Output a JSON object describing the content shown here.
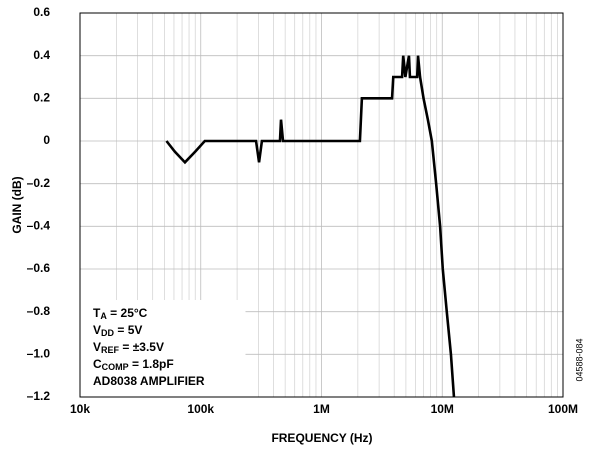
{
  "chart_data": {
    "type": "line",
    "x_label": "FREQUENCY (Hz)",
    "y_label": "GAIN (dB)",
    "side_note": "04588-084",
    "xscale": "log",
    "grid": true,
    "xlim": [
      10000,
      100000000
    ],
    "ylim": [
      -1.2,
      0.6
    ],
    "xticks": [
      {
        "value": 10000,
        "label": "10k"
      },
      {
        "value": 100000,
        "label": "100k"
      },
      {
        "value": 1000000,
        "label": "1M"
      },
      {
        "value": 10000000,
        "label": "10M"
      },
      {
        "value": 100000000,
        "label": "100M"
      }
    ],
    "yticks": [
      {
        "value": -1.2,
        "label": "–1.2"
      },
      {
        "value": -1.0,
        "label": "–1.0"
      },
      {
        "value": -0.8,
        "label": "–0.8"
      },
      {
        "value": -0.6,
        "label": "–0.6"
      },
      {
        "value": -0.4,
        "label": "–0.4"
      },
      {
        "value": -0.2,
        "label": "–0.2"
      },
      0,
      0.2,
      0.4,
      0.6
    ],
    "annotations": [
      {
        "text": "T",
        "sub": "A",
        "rest": " = 25°C"
      },
      {
        "text": "V",
        "sub": "DD",
        "rest": " = 5V"
      },
      {
        "text": "V",
        "sub": "REF",
        "rest": " = ±3.5V"
      },
      {
        "text": "C",
        "sub": "COMP",
        "rest": " = 1.8pF"
      },
      {
        "text": "AD8038 AMPLIFIER"
      }
    ],
    "x": [
      52000,
      61000,
      74000,
      90000,
      108000,
      287000,
      304000,
      321000,
      453000,
      462000,
      480000,
      2080000,
      2160000,
      3840000,
      3930000,
      4650000,
      4750000,
      4950000,
      5300000,
      5400000,
      6200000,
      6300000,
      6550000,
      7000000,
      7600000,
      8200000,
      8900000,
      9600000,
      10100000,
      10900000,
      11800000,
      12500000
    ],
    "series": [
      {
        "color": "#000000",
        "values": [
          0,
          -0.05,
          -0.1,
          -0.05,
          0,
          0,
          -0.1,
          0,
          0,
          0.1,
          0,
          0,
          0.2,
          0.2,
          0.3,
          0.3,
          0.4,
          0.3,
          0.4,
          0.3,
          0.3,
          0.4,
          0.3,
          0.2,
          0.1,
          0,
          -0.2,
          -0.4,
          -0.6,
          -0.8,
          -1.0,
          -1.2
        ]
      }
    ]
  }
}
